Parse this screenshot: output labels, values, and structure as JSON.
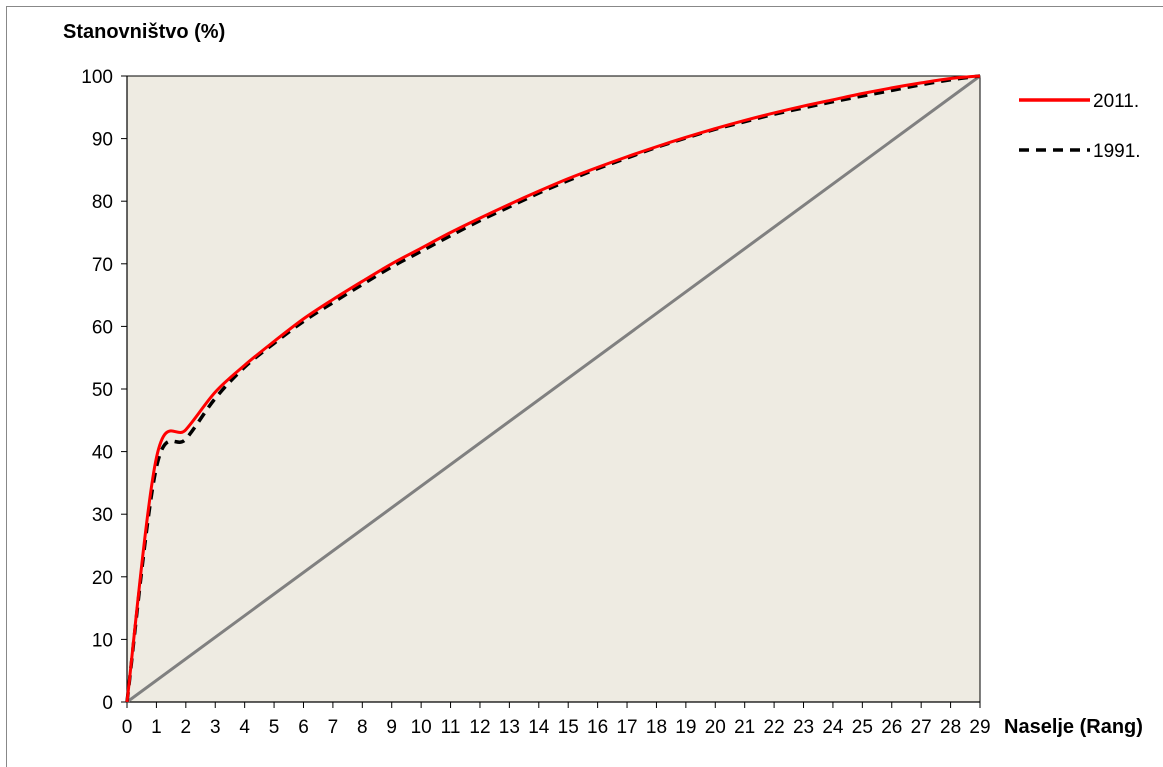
{
  "chart_data": {
    "type": "line",
    "ylabel": "Stanovništvo (%)",
    "xlabel": "Naselje (Rang)",
    "xlim": [
      0,
      29
    ],
    "ylim": [
      0,
      100
    ],
    "x_ticks": [
      0,
      1,
      2,
      3,
      4,
      5,
      6,
      7,
      8,
      9,
      10,
      11,
      12,
      13,
      14,
      15,
      16,
      17,
      18,
      19,
      20,
      21,
      22,
      23,
      24,
      25,
      26,
      27,
      28,
      29
    ],
    "y_ticks": [
      0,
      10,
      20,
      30,
      40,
      50,
      60,
      70,
      80,
      90,
      100
    ],
    "plot_background": "#eeebe2",
    "legend_position": "right",
    "series": [
      {
        "name": "2011.",
        "color": "#ff0000",
        "style": "solid",
        "x": [
          0,
          1,
          2,
          3,
          4,
          5,
          6,
          7,
          8,
          9,
          10,
          11,
          12,
          13,
          14,
          15,
          16,
          17,
          18,
          19,
          20,
          21,
          22,
          23,
          24,
          25,
          26,
          27,
          28,
          29
        ],
        "values": [
          0,
          39,
          43.5,
          49.5,
          53.8,
          57.6,
          61.2,
          64.3,
          67.2,
          70,
          72.5,
          75,
          77.3,
          79.5,
          81.6,
          83.6,
          85.4,
          87.1,
          88.7,
          90.2,
          91.6,
          92.9,
          94.1,
          95.2,
          96.2,
          97.2,
          98.1,
          98.9,
          99.6,
          100
        ]
      },
      {
        "name": "1991.",
        "color": "#000000",
        "style": "dashed",
        "x": [
          0,
          1,
          2,
          3,
          4,
          5,
          6,
          7,
          8,
          9,
          10,
          11,
          12,
          13,
          14,
          15,
          16,
          17,
          18,
          19,
          20,
          21,
          22,
          23,
          24,
          25,
          26,
          27,
          28,
          29
        ],
        "values": [
          0,
          37.5,
          42,
          48.5,
          53.5,
          57.3,
          60.8,
          63.8,
          66.7,
          69.5,
          72,
          74.5,
          76.9,
          79.1,
          81.3,
          83.3,
          85.2,
          86.9,
          88.6,
          90.1,
          91.5,
          92.7,
          93.9,
          94.9,
          95.9,
          96.8,
          97.7,
          98.6,
          99.4,
          100
        ]
      },
      {
        "name": "",
        "color": "#808080",
        "style": "solid",
        "x": [
          0,
          29
        ],
        "values": [
          0,
          100
        ]
      }
    ]
  }
}
